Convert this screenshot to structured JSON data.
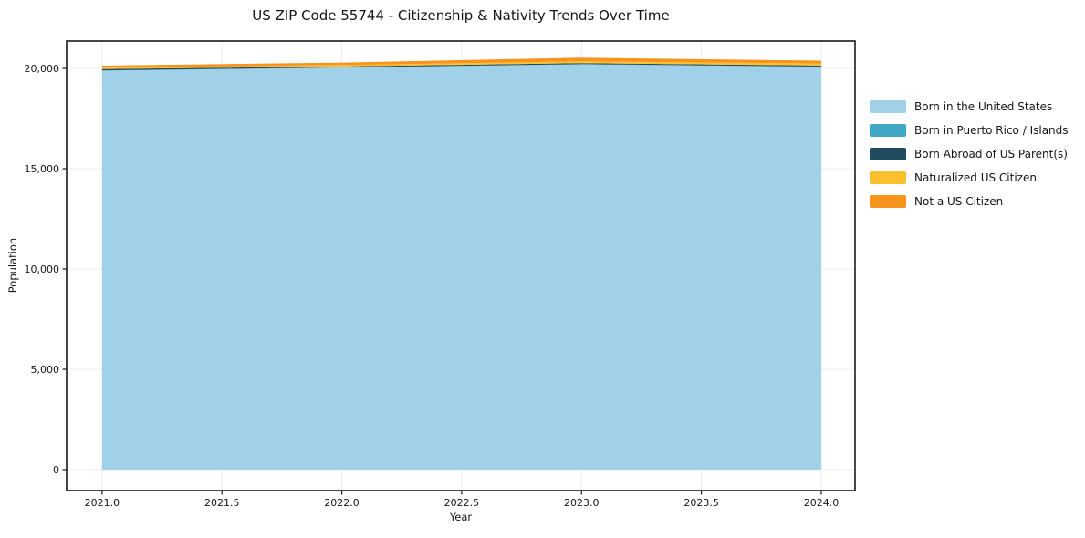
{
  "title": "US ZIP Code 55744 - Citizenship & Nativity Trends Over Time",
  "chart_data": {
    "type": "area",
    "stacked": true,
    "title": "US ZIP Code 55744 - Citizenship & Nativity Trends Over Time",
    "xlabel": "Year",
    "ylabel": "Population",
    "x": [
      2021,
      2022,
      2023,
      2024
    ],
    "series": [
      {
        "name": "Born in the United States",
        "color": "#a1d1e8",
        "values": [
          19890,
          20040,
          20200,
          20080
        ]
      },
      {
        "name": "Born in Puerto Rico / Islands",
        "color": "#3fa8c5",
        "values": [
          10,
          10,
          15,
          10
        ]
      },
      {
        "name": "Born Abroad of US Parent(s)",
        "color": "#1f4b5f",
        "values": [
          70,
          50,
          50,
          55
        ]
      },
      {
        "name": "Naturalized US Citizen",
        "color": "#fbc02d",
        "values": [
          60,
          70,
          90,
          100
        ]
      },
      {
        "name": "Not a US Citizen",
        "color": "#f6941d",
        "values": [
          110,
          120,
          180,
          140
        ]
      }
    ],
    "xticks": [
      2021.0,
      2021.5,
      2022.0,
      2022.5,
      2023.0,
      2023.5,
      2024.0
    ],
    "xtick_labels": [
      "2021.0",
      "2021.5",
      "2022.0",
      "2022.5",
      "2023.0",
      "2023.5",
      "2024.0"
    ],
    "yticks": [
      0,
      5000,
      10000,
      15000,
      20000
    ],
    "ytick_labels": [
      "0",
      "5,000",
      "10,000",
      "15,000",
      "20,000"
    ],
    "xlim": [
      2020.852,
      2024.141
    ],
    "ylim": [
      -1045,
      21365
    ],
    "grid": true,
    "grid_color": "#ececec",
    "spine_color": "#1a1a1a",
    "legend_position": "right-outside"
  }
}
